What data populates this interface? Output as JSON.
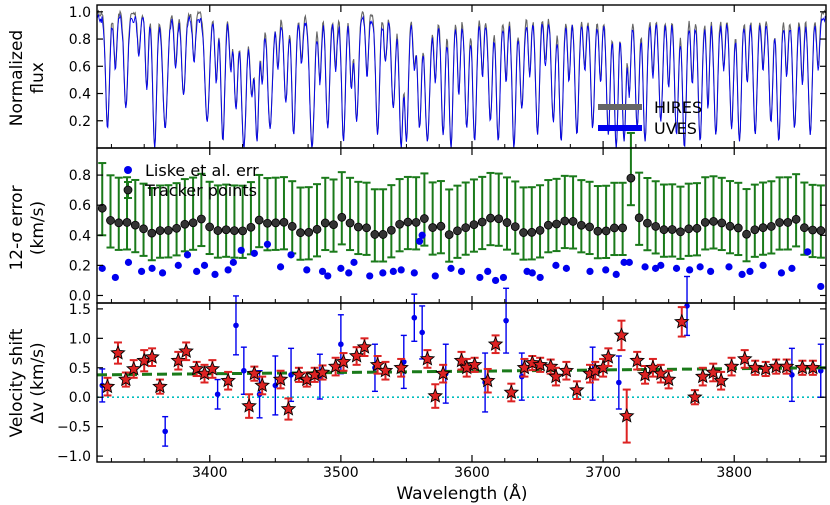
{
  "chart_data": [
    {
      "type": "line",
      "panel": "top",
      "ylabel_lines": [
        "Normalized",
        "flux"
      ],
      "ylim": [
        0,
        1.05
      ],
      "yticks": [
        0.2,
        0.4,
        0.6,
        0.8,
        1.0
      ],
      "ytick_labels": [
        "0.2",
        "0.4",
        "0.6",
        "0.8",
        "1.0"
      ],
      "legend_position": "lower-right",
      "series": [
        {
          "name": "HIRES",
          "color": "#666666",
          "baseline": 0.99,
          "noise": 0.02
        },
        {
          "name": "UVES",
          "color": "#0000ee",
          "baseline": 0.95,
          "noise": 0.03
        }
      ],
      "absorption_lines": [
        [
          3322,
          0.85,
          2.0
        ],
        [
          3328,
          0.4,
          1.5
        ],
        [
          3336,
          0.7,
          2.0
        ],
        [
          3346,
          0.3,
          1.5
        ],
        [
          3352,
          0.55,
          1.5
        ],
        [
          3358,
          1.0,
          2.0
        ],
        [
          3366,
          0.85,
          2.5
        ],
        [
          3374,
          0.4,
          1.5
        ],
        [
          3380,
          0.6,
          2.0
        ],
        [
          3388,
          0.35,
          1.5
        ],
        [
          3398,
          0.8,
          2.5
        ],
        [
          3405,
          0.5,
          1.5
        ],
        [
          3410,
          0.95,
          2.0
        ],
        [
          3416,
          0.4,
          1.5
        ],
        [
          3420,
          0.7,
          2.0
        ],
        [
          3426,
          1.0,
          2.5
        ],
        [
          3432,
          0.6,
          2.0
        ],
        [
          3436,
          0.95,
          2.0
        ],
        [
          3440,
          0.5,
          1.5
        ],
        [
          3446,
          0.85,
          2.5
        ],
        [
          3452,
          0.4,
          1.5
        ],
        [
          3458,
          0.65,
          2.0
        ],
        [
          3464,
          0.9,
          2.0
        ],
        [
          3470,
          0.35,
          1.5
        ],
        [
          3478,
          1.0,
          2.5
        ],
        [
          3484,
          0.5,
          1.5
        ],
        [
          3490,
          0.85,
          2.0
        ],
        [
          3496,
          0.4,
          1.5
        ],
        [
          3502,
          0.95,
          2.0
        ],
        [
          3508,
          0.55,
          1.5
        ],
        [
          3512,
          0.8,
          2.0
        ],
        [
          3520,
          0.45,
          1.5
        ],
        [
          3528,
          0.9,
          2.0
        ],
        [
          3534,
          0.35,
          1.5
        ],
        [
          3540,
          0.7,
          2.0
        ],
        [
          3546,
          1.0,
          2.0
        ],
        [
          3550,
          0.95,
          2.0
        ],
        [
          3556,
          0.4,
          1.5
        ],
        [
          3560,
          0.85,
          2.0
        ],
        [
          3566,
          0.95,
          2.5
        ],
        [
          3572,
          0.5,
          1.5
        ],
        [
          3578,
          0.9,
          2.0
        ],
        [
          3584,
          1.0,
          2.0
        ],
        [
          3590,
          0.6,
          1.5
        ],
        [
          3596,
          0.85,
          2.0
        ],
        [
          3602,
          0.95,
          2.0
        ],
        [
          3608,
          0.45,
          1.5
        ],
        [
          3614,
          0.8,
          2.0
        ],
        [
          3620,
          0.95,
          2.0
        ],
        [
          3626,
          0.5,
          1.5
        ],
        [
          3632,
          1.0,
          2.0
        ],
        [
          3638,
          0.7,
          2.0
        ],
        [
          3644,
          0.45,
          1.5
        ],
        [
          3650,
          0.9,
          2.0
        ],
        [
          3656,
          0.35,
          1.5
        ],
        [
          3662,
          0.8,
          2.0
        ],
        [
          3668,
          0.95,
          2.0
        ],
        [
          3674,
          0.5,
          1.5
        ],
        [
          3680,
          0.9,
          2.0
        ],
        [
          3686,
          0.4,
          1.5
        ],
        [
          3692,
          0.85,
          2.0
        ],
        [
          3698,
          0.5,
          1.5
        ],
        [
          3704,
          0.9,
          2.0
        ],
        [
          3710,
          1.0,
          2.0
        ],
        [
          3716,
          0.95,
          2.0
        ],
        [
          3720,
          0.6,
          1.5
        ],
        [
          3726,
          0.85,
          2.0
        ],
        [
          3732,
          0.95,
          2.0
        ],
        [
          3738,
          0.45,
          1.5
        ],
        [
          3744,
          0.8,
          2.0
        ],
        [
          3750,
          0.55,
          1.5
        ],
        [
          3756,
          0.9,
          2.0
        ],
        [
          3762,
          1.0,
          2.0
        ],
        [
          3768,
          0.5,
          1.5
        ],
        [
          3774,
          0.95,
          2.0
        ],
        [
          3780,
          0.7,
          1.5
        ],
        [
          3786,
          0.9,
          2.0
        ],
        [
          3792,
          0.4,
          1.5
        ],
        [
          3798,
          0.85,
          2.0
        ],
        [
          3804,
          0.95,
          2.0
        ],
        [
          3810,
          0.5,
          1.5
        ],
        [
          3816,
          0.9,
          2.0
        ],
        [
          3822,
          0.4,
          1.5
        ],
        [
          3828,
          0.8,
          2.0
        ],
        [
          3834,
          0.95,
          2.0
        ],
        [
          3840,
          0.45,
          1.5
        ],
        [
          3846,
          0.85,
          2.0
        ],
        [
          3852,
          0.5,
          1.5
        ],
        [
          3858,
          0.9,
          2.0
        ],
        [
          3864,
          0.4,
          1.5
        ]
      ]
    },
    {
      "type": "scatter",
      "panel": "middle",
      "ylabel_lines": [
        "12-σ error",
        "(km/s)"
      ],
      "ylim": [
        -0.05,
        0.98
      ],
      "yticks": [
        0.0,
        0.2,
        0.4,
        0.6,
        0.8
      ],
      "ytick_labels": [
        "0.0",
        "0.2",
        "0.4",
        "0.6",
        "0.8"
      ],
      "legend_position": "top-left",
      "series": [
        {
          "name": "Liske et al. err",
          "color": "#0000ee",
          "x": [
            3318,
            3328,
            3338,
            3348,
            3356,
            3364,
            3376,
            3383,
            3390,
            3396,
            3404,
            3414,
            3418,
            3424,
            3434,
            3444,
            3454,
            3462,
            3474,
            3486,
            3490,
            3500,
            3506,
            3510,
            3522,
            3532,
            3540,
            3546,
            3556,
            3560,
            3562,
            3572,
            3584,
            3592,
            3606,
            3612,
            3618,
            3624,
            3642,
            3646,
            3652,
            3664,
            3672,
            3690,
            3702,
            3710,
            3716,
            3720,
            3732,
            3740,
            3744,
            3756,
            3766,
            3774,
            3782,
            3796,
            3806,
            3812,
            3822,
            3836,
            3844,
            3856,
            3866
          ],
          "y": [
            0.18,
            0.12,
            0.22,
            0.16,
            0.18,
            0.15,
            0.2,
            0.27,
            0.16,
            0.2,
            0.14,
            0.17,
            0.22,
            0.3,
            0.28,
            0.34,
            0.19,
            0.27,
            0.17,
            0.16,
            0.13,
            0.18,
            0.15,
            0.22,
            0.13,
            0.15,
            0.16,
            0.17,
            0.15,
            0.36,
            0.4,
            0.13,
            0.18,
            0.16,
            0.12,
            0.16,
            0.1,
            0.12,
            0.16,
            0.15,
            0.12,
            0.2,
            0.18,
            0.16,
            0.17,
            0.14,
            0.22,
            0.22,
            0.19,
            0.18,
            0.2,
            0.18,
            0.17,
            0.19,
            0.16,
            0.19,
            0.14,
            0.16,
            0.2,
            0.15,
            0.18,
            0.29,
            0.06
          ]
        },
        {
          "name": "Tracker points",
          "color": "#333333",
          "errorbar_color": "#1a7a1a",
          "x_start": 3318,
          "x_step": 6.3,
          "y_center": 0.46,
          "y_amplitude": 0.04,
          "y_outliers": [
            [
              0,
              0.58
            ],
            [
              64,
              0.78
            ]
          ],
          "err_low": 0.18,
          "err_high": 0.3
        }
      ]
    },
    {
      "type": "scatter",
      "panel": "bottom",
      "ylabel_lines": [
        "Velocity shift",
        "Δv (km/s)"
      ],
      "xlabel": "Wavelength (Å)",
      "xlim": [
        3314,
        3870
      ],
      "xticks": [
        3400,
        3500,
        3600,
        3700,
        3800
      ],
      "xtick_labels": [
        "3400",
        "3500",
        "3600",
        "3700",
        "3800"
      ],
      "ylim": [
        -1.1,
        1.6
      ],
      "yticks": [
        -1.0,
        -0.5,
        0.0,
        0.5,
        1.0,
        1.5
      ],
      "ytick_labels": [
        "−1.0",
        "−0.5",
        "0.0",
        "0.5",
        "1.0",
        "1.5"
      ],
      "fit_line": {
        "x": [
          3314,
          3870
        ],
        "y": [
          0.38,
          0.5
        ],
        "color": "#1a7a1a"
      },
      "zero_line": {
        "y": 0.0,
        "color": "#00bfbf"
      },
      "series": [
        {
          "name": "Liske et al.",
          "color": "#0000ee",
          "points": [
            [
              3318,
              0.2,
              0.28
            ],
            [
              3366,
              -0.58,
              0.25
            ],
            [
              3406,
              0.05,
              0.25
            ],
            [
              3420,
              1.22,
              0.5
            ],
            [
              3426,
              0.45,
              0.4
            ],
            [
              3438,
              0.05,
              0.4
            ],
            [
              3450,
              0.2,
              0.5
            ],
            [
              3462,
              0.38,
              0.45
            ],
            [
              3484,
              0.35,
              0.38
            ],
            [
              3500,
              0.9,
              0.5
            ],
            [
              3526,
              0.5,
              0.4
            ],
            [
              3548,
              0.6,
              0.45
            ],
            [
              3556,
              1.35,
              0.4
            ],
            [
              3562,
              1.1,
              0.45
            ],
            [
              3580,
              0.4,
              0.5
            ],
            [
              3610,
              0.25,
              0.5
            ],
            [
              3626,
              1.3,
              0.55
            ],
            [
              3638,
              0.35,
              0.4
            ],
            [
              3692,
              0.4,
              0.45
            ],
            [
              3712,
              0.25,
              0.45
            ],
            [
              3764,
              1.55,
              0.5
            ],
            [
              3844,
              0.38,
              0.45
            ],
            [
              3866,
              0.45,
              0.45
            ]
          ]
        },
        {
          "name": "Tracker points",
          "color": "#dd2222",
          "points": [
            [
              3322,
              0.18,
              0.15
            ],
            [
              3330,
              0.75,
              0.18
            ],
            [
              3336,
              0.3,
              0.12
            ],
            [
              3342,
              0.48,
              0.15
            ],
            [
              3350,
              0.62,
              0.18
            ],
            [
              3356,
              0.68,
              0.15
            ],
            [
              3362,
              0.18,
              0.12
            ],
            [
              3376,
              0.62,
              0.15
            ],
            [
              3382,
              0.78,
              0.15
            ],
            [
              3390,
              0.48,
              0.12
            ],
            [
              3396,
              0.4,
              0.15
            ],
            [
              3402,
              0.48,
              0.15
            ],
            [
              3414,
              0.28,
              0.15
            ],
            [
              3430,
              -0.15,
              0.2
            ],
            [
              3434,
              0.4,
              0.12
            ],
            [
              3440,
              0.2,
              0.15
            ],
            [
              3454,
              0.3,
              0.15
            ],
            [
              3460,
              -0.2,
              0.18
            ],
            [
              3468,
              0.38,
              0.12
            ],
            [
              3474,
              0.3,
              0.12
            ],
            [
              3480,
              0.38,
              0.12
            ],
            [
              3486,
              0.42,
              0.12
            ],
            [
              3496,
              0.52,
              0.15
            ],
            [
              3502,
              0.6,
              0.15
            ],
            [
              3512,
              0.7,
              0.15
            ],
            [
              3518,
              0.85,
              0.15
            ],
            [
              3528,
              0.55,
              0.15
            ],
            [
              3534,
              0.45,
              0.15
            ],
            [
              3546,
              0.5,
              0.15
            ],
            [
              3566,
              0.65,
              0.15
            ],
            [
              3572,
              0.02,
              0.2
            ],
            [
              3578,
              0.4,
              0.15
            ],
            [
              3592,
              0.62,
              0.15
            ],
            [
              3596,
              0.5,
              0.15
            ],
            [
              3602,
              0.55,
              0.12
            ],
            [
              3612,
              0.28,
              0.2
            ],
            [
              3618,
              0.9,
              0.15
            ],
            [
              3630,
              0.08,
              0.15
            ],
            [
              3640,
              0.5,
              0.15
            ],
            [
              3646,
              0.58,
              0.12
            ],
            [
              3652,
              0.55,
              0.12
            ],
            [
              3660,
              0.52,
              0.12
            ],
            [
              3664,
              0.35,
              0.15
            ],
            [
              3672,
              0.45,
              0.15
            ],
            [
              3680,
              0.12,
              0.15
            ],
            [
              3690,
              0.4,
              0.15
            ],
            [
              3694,
              0.45,
              0.15
            ],
            [
              3700,
              0.5,
              0.15
            ],
            [
              3704,
              0.68,
              0.15
            ],
            [
              3714,
              1.05,
              0.25
            ],
            [
              3718,
              -0.32,
              0.45
            ],
            [
              3726,
              0.62,
              0.15
            ],
            [
              3732,
              0.38,
              0.15
            ],
            [
              3738,
              0.5,
              0.15
            ],
            [
              3744,
              0.4,
              0.15
            ],
            [
              3750,
              0.3,
              0.15
            ],
            [
              3760,
              1.28,
              0.25
            ],
            [
              3770,
              0.0,
              0.12
            ],
            [
              3776,
              0.35,
              0.15
            ],
            [
              3784,
              0.42,
              0.15
            ],
            [
              3790,
              0.28,
              0.15
            ],
            [
              3798,
              0.52,
              0.15
            ],
            [
              3808,
              0.65,
              0.15
            ],
            [
              3816,
              0.5,
              0.12
            ],
            [
              3824,
              0.48,
              0.12
            ],
            [
              3832,
              0.52,
              0.12
            ],
            [
              3840,
              0.52,
              0.12
            ],
            [
              3852,
              0.5,
              0.12
            ],
            [
              3860,
              0.5,
              0.12
            ]
          ]
        }
      ]
    }
  ]
}
